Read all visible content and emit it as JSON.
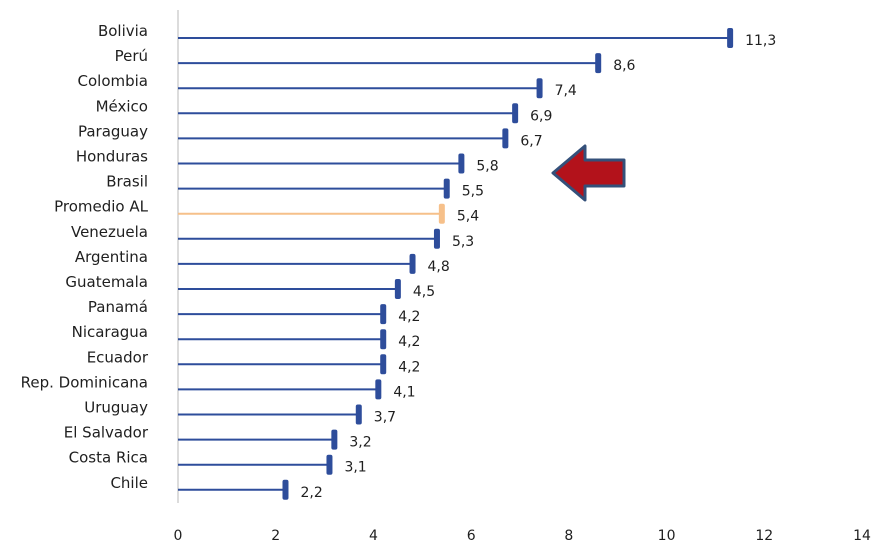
{
  "chart_data": {
    "type": "bar",
    "orientation": "horizontal",
    "style": "lollipop-stem-with-end-cap",
    "categories": [
      "Bolivia",
      "Perú",
      "Colombia",
      "México",
      "Paraguay",
      "Honduras",
      "Brasil",
      "Promedio AL",
      "Venezuela",
      "Argentina",
      "Guatemala",
      "Panamá",
      "Nicaragua",
      "Ecuador",
      "Rep. Dominicana",
      "Uruguay",
      "El Salvador",
      "Costa Rica",
      "Chile"
    ],
    "values": [
      11.3,
      8.6,
      7.4,
      6.9,
      6.7,
      5.8,
      5.5,
      5.4,
      5.3,
      4.8,
      4.5,
      4.2,
      4.2,
      4.2,
      4.1,
      3.7,
      3.2,
      3.1,
      2.2
    ],
    "value_labels": [
      "11,3",
      "8,6",
      "7,4",
      "6,9",
      "6,7",
      "5,8",
      "5,5",
      "5,4",
      "5,3",
      "4,8",
      "4,5",
      "4,2",
      "4,2",
      "4,2",
      "4,1",
      "3,7",
      "3,2",
      "3,1",
      "2,2"
    ],
    "highlight_category": "Promedio AL",
    "xlim": [
      0,
      14
    ],
    "x_ticks": [
      0,
      2,
      4,
      6,
      8,
      10,
      12,
      14
    ],
    "x_tick_labels": [
      "0",
      "2",
      "4",
      "6",
      "8",
      "10",
      "12",
      "14"
    ],
    "grid": false,
    "title": "",
    "xlabel": "",
    "ylabel": "",
    "annotation": {
      "shape": "arrow",
      "direction": "left",
      "points_to": "Honduras"
    },
    "colors": {
      "bar": "#2e4d9b",
      "highlight": "#f6c08a",
      "axis": "#b8b8b8",
      "arrow_fill": "#b3121b",
      "arrow_stroke": "#34507a"
    }
  }
}
